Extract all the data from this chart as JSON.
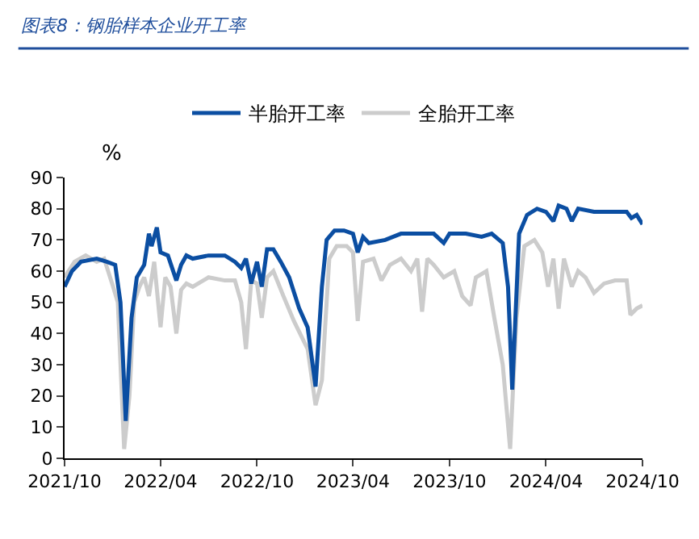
{
  "chart_data": {
    "type": "line",
    "title": "图表8：钢胎样本企业开工率",
    "annotations": [
      "%"
    ],
    "legend": "top",
    "marker": "none",
    "line_style": "solid",
    "xlim": [
      "2021-10-01",
      "2024-10-01"
    ],
    "xticks": [
      {
        "value": "2021-10-01",
        "label": "2021/10"
      },
      {
        "value": "2022-04-01",
        "label": "2022/04"
      },
      {
        "value": "2022-10-01",
        "label": "2022/10"
      },
      {
        "value": "2023-04-01",
        "label": "2023/04"
      },
      {
        "value": "2023-10-01",
        "label": "2023/10"
      },
      {
        "value": "2024-04-01",
        "label": "2024/04"
      },
      {
        "value": "2024-10-01",
        "label": "2024/10"
      }
    ],
    "ylim": [
      0,
      90
    ],
    "yticks": [
      0,
      10,
      20,
      30,
      40,
      50,
      60,
      70,
      80,
      90
    ],
    "series": [
      {
        "name": "半胎开工率",
        "color": "#0b4ea2",
        "x": [
          "2021-10-01",
          "2021-10-15",
          "2021-11-01",
          "2021-12-01",
          "2021-12-20",
          "2022-01-05",
          "2022-01-15",
          "2022-01-25",
          "2022-02-05",
          "2022-02-15",
          "2022-03-01",
          "2022-03-10",
          "2022-03-15",
          "2022-03-25",
          "2022-04-01",
          "2022-04-15",
          "2022-05-01",
          "2022-05-10",
          "2022-05-20",
          "2022-06-01",
          "2022-07-01",
          "2022-08-01",
          "2022-08-20",
          "2022-09-01",
          "2022-09-10",
          "2022-09-20",
          "2022-10-01",
          "2022-10-10",
          "2022-10-20",
          "2022-11-01",
          "2022-11-15",
          "2022-12-01",
          "2022-12-20",
          "2023-01-05",
          "2023-01-20",
          "2023-02-01",
          "2023-02-10",
          "2023-02-25",
          "2023-03-15",
          "2023-04-01",
          "2023-04-10",
          "2023-04-20",
          "2023-05-01",
          "2023-06-01",
          "2023-07-01",
          "2023-08-01",
          "2023-09-01",
          "2023-09-20",
          "2023-10-01",
          "2023-11-01",
          "2023-12-01",
          "2023-12-20",
          "2024-01-10",
          "2024-01-20",
          "2024-01-28",
          "2024-02-10",
          "2024-02-25",
          "2024-03-15",
          "2024-04-01",
          "2024-04-15",
          "2024-04-25",
          "2024-05-10",
          "2024-05-20",
          "2024-06-01",
          "2024-07-01",
          "2024-08-01",
          "2024-09-01",
          "2024-09-10",
          "2024-09-20",
          "2024-10-01"
        ],
        "values": [
          55,
          60,
          63,
          64,
          63,
          62,
          50,
          12,
          45,
          58,
          62,
          72,
          68,
          74,
          66,
          65,
          57,
          62,
          65,
          64,
          65,
          65,
          63,
          61,
          64,
          56,
          63,
          55,
          67,
          67,
          63,
          58,
          48,
          42,
          23,
          55,
          70,
          73,
          73,
          72,
          66,
          71,
          69,
          70,
          72,
          72,
          72,
          69,
          72,
          72,
          71,
          72,
          69,
          55,
          22,
          72,
          78,
          80,
          79,
          76,
          81,
          80,
          76,
          80,
          79,
          79,
          79,
          77,
          78,
          75
        ]
      },
      {
        "name": "全胎开工率",
        "color": "#cccccc",
        "x": [
          "2021-10-01",
          "2021-10-20",
          "2021-11-10",
          "2021-12-01",
          "2021-12-15",
          "2022-01-01",
          "2022-01-10",
          "2022-01-22",
          "2022-02-01",
          "2022-02-10",
          "2022-02-20",
          "2022-03-01",
          "2022-03-10",
          "2022-03-20",
          "2022-04-01",
          "2022-04-10",
          "2022-04-20",
          "2022-05-01",
          "2022-05-10",
          "2022-05-20",
          "2022-06-01",
          "2022-07-01",
          "2022-08-01",
          "2022-08-20",
          "2022-09-01",
          "2022-09-10",
          "2022-09-20",
          "2022-10-01",
          "2022-10-10",
          "2022-10-20",
          "2022-11-01",
          "2022-11-20",
          "2022-12-10",
          "2023-01-05",
          "2023-01-20",
          "2023-02-01",
          "2023-02-15",
          "2023-03-01",
          "2023-03-20",
          "2023-04-01",
          "2023-04-10",
          "2023-04-20",
          "2023-05-10",
          "2023-05-25",
          "2023-06-10",
          "2023-07-01",
          "2023-07-20",
          "2023-08-01",
          "2023-08-10",
          "2023-08-20",
          "2023-09-01",
          "2023-09-20",
          "2023-10-10",
          "2023-10-25",
          "2023-11-10",
          "2023-11-20",
          "2023-12-10",
          "2023-12-25",
          "2024-01-10",
          "2024-01-24",
          "2024-02-05",
          "2024-02-20",
          "2024-03-10",
          "2024-03-25",
          "2024-04-05",
          "2024-04-15",
          "2024-04-25",
          "2024-05-05",
          "2024-05-20",
          "2024-06-01",
          "2024-06-15",
          "2024-07-01",
          "2024-07-20",
          "2024-08-10",
          "2024-09-01",
          "2024-09-08",
          "2024-09-20",
          "2024-10-01"
        ],
        "values": [
          58,
          63,
          65,
          63,
          64,
          55,
          50,
          3,
          20,
          50,
          55,
          58,
          52,
          63,
          42,
          58,
          55,
          40,
          54,
          56,
          55,
          58,
          57,
          57,
          50,
          35,
          57,
          56,
          45,
          58,
          60,
          52,
          44,
          35,
          17,
          25,
          64,
          68,
          68,
          66,
          44,
          63,
          64,
          57,
          62,
          64,
          60,
          64,
          47,
          64,
          62,
          58,
          60,
          52,
          49,
          58,
          60,
          45,
          30,
          3,
          45,
          68,
          70,
          66,
          55,
          64,
          48,
          64,
          55,
          60,
          58,
          53,
          56,
          57,
          57,
          46,
          48,
          49
        ]
      }
    ]
  }
}
